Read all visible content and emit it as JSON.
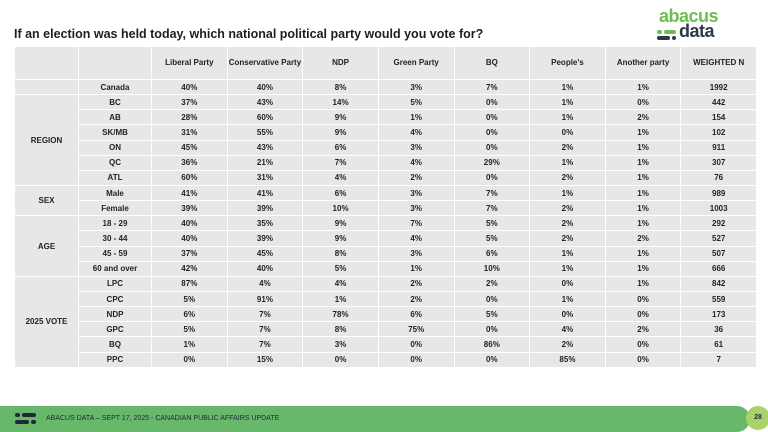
{
  "title": "If an election was held today, which national political party would you vote for?",
  "logo": {
    "line1": "abacus",
    "line2": "data"
  },
  "colors": {
    "brand_green": "#67b86a",
    "cell_bg": "#e6e8e6",
    "page_circle": "#a9d36a"
  },
  "table": {
    "headers": [
      "Liberal Party",
      "Conservative Party",
      "NDP",
      "Green Party",
      "BQ",
      "People's",
      "Another party",
      "WEIGHTED N"
    ],
    "groups": [
      {
        "label": "",
        "rows": [
          {
            "label": "Canada",
            "values": [
              "40%",
              "40%",
              "8%",
              "3%",
              "7%",
              "1%",
              "1%",
              "1992"
            ]
          }
        ]
      },
      {
        "label": "REGION",
        "rows": [
          {
            "label": "BC",
            "values": [
              "37%",
              "43%",
              "14%",
              "5%",
              "0%",
              "1%",
              "0%",
              "442"
            ]
          },
          {
            "label": "AB",
            "values": [
              "28%",
              "60%",
              "9%",
              "1%",
              "0%",
              "1%",
              "2%",
              "154"
            ]
          },
          {
            "label": "SK/MB",
            "values": [
              "31%",
              "55%",
              "9%",
              "4%",
              "0%",
              "0%",
              "1%",
              "102"
            ]
          },
          {
            "label": "ON",
            "values": [
              "45%",
              "43%",
              "6%",
              "3%",
              "0%",
              "2%",
              "1%",
              "911"
            ]
          },
          {
            "label": "QC",
            "values": [
              "36%",
              "21%",
              "7%",
              "4%",
              "29%",
              "1%",
              "1%",
              "307"
            ]
          },
          {
            "label": "ATL",
            "values": [
              "60%",
              "31%",
              "4%",
              "2%",
              "0%",
              "2%",
              "1%",
              "76"
            ]
          }
        ]
      },
      {
        "label": "SEX",
        "rows": [
          {
            "label": "Male",
            "values": [
              "41%",
              "41%",
              "6%",
              "3%",
              "7%",
              "1%",
              "1%",
              "989"
            ]
          },
          {
            "label": "Female",
            "values": [
              "39%",
              "39%",
              "10%",
              "3%",
              "7%",
              "2%",
              "1%",
              "1003"
            ]
          }
        ]
      },
      {
        "label": "AGE",
        "rows": [
          {
            "label": "18 - 29",
            "values": [
              "40%",
              "35%",
              "9%",
              "7%",
              "5%",
              "2%",
              "1%",
              "292"
            ]
          },
          {
            "label": "30 - 44",
            "values": [
              "40%",
              "39%",
              "9%",
              "4%",
              "5%",
              "2%",
              "2%",
              "527"
            ]
          },
          {
            "label": "45 - 59",
            "values": [
              "37%",
              "45%",
              "8%",
              "3%",
              "6%",
              "1%",
              "1%",
              "507"
            ]
          },
          {
            "label": "60 and over",
            "values": [
              "42%",
              "40%",
              "5%",
              "1%",
              "10%",
              "1%",
              "1%",
              "666"
            ]
          }
        ]
      },
      {
        "label": "2025 VOTE",
        "rows": [
          {
            "label": "LPC",
            "values": [
              "87%",
              "4%",
              "4%",
              "2%",
              "2%",
              "0%",
              "1%",
              "842"
            ]
          },
          {
            "label": "CPC",
            "values": [
              "5%",
              "91%",
              "1%",
              "2%",
              "0%",
              "1%",
              "0%",
              "559"
            ]
          },
          {
            "label": "NDP",
            "values": [
              "6%",
              "7%",
              "78%",
              "6%",
              "5%",
              "0%",
              "0%",
              "173"
            ]
          },
          {
            "label": "GPC",
            "values": [
              "5%",
              "7%",
              "8%",
              "75%",
              "0%",
              "4%",
              "2%",
              "36"
            ]
          },
          {
            "label": "BQ",
            "values": [
              "1%",
              "7%",
              "3%",
              "0%",
              "86%",
              "2%",
              "0%",
              "61"
            ]
          },
          {
            "label": "PPC",
            "values": [
              "0%",
              "15%",
              "0%",
              "0%",
              "0%",
              "85%",
              "0%",
              "7"
            ]
          }
        ]
      }
    ]
  },
  "footer": {
    "text": "ABACUS DATA – SEPT 17, 2025 - CANADIAN PUBLIC AFFAIRS UPDATE",
    "page": "28"
  }
}
